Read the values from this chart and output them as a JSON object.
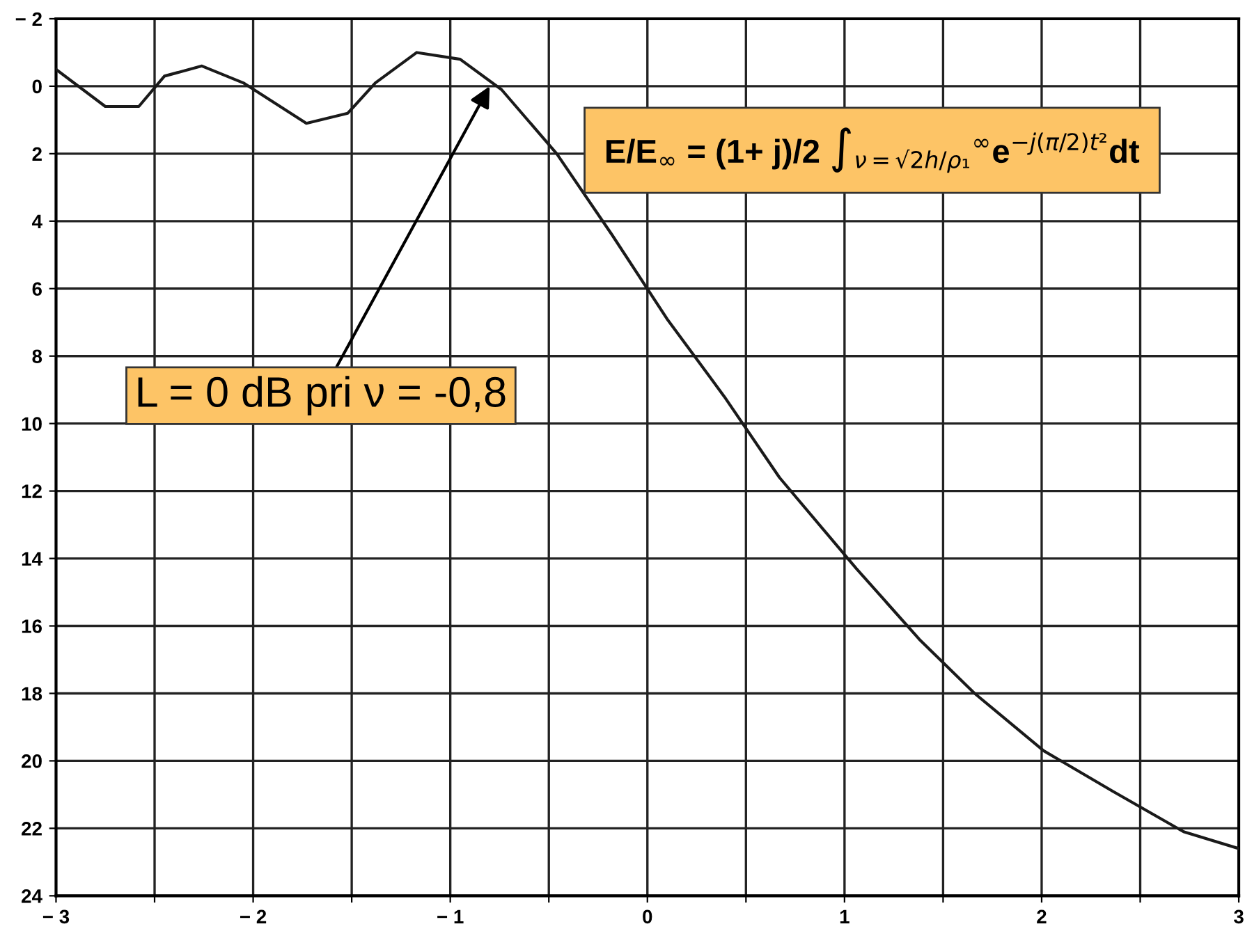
{
  "chart_data": {
    "type": "line",
    "x": [
      -3,
      -2.75,
      -2.58,
      -2.45,
      -2.26,
      -2.05,
      -1.73,
      -1.52,
      -1.38,
      -1.17,
      -0.95,
      -0.74,
      -0.46,
      -0.18,
      0.1,
      0.39,
      0.67,
      1.06,
      1.38,
      1.66,
      2.01,
      2.36,
      2.72,
      3
    ],
    "values": [
      -0.5,
      0.6,
      0.6,
      -0.3,
      -0.6,
      -0.1,
      1.1,
      0.8,
      -0.1,
      -1.0,
      -0.8,
      0.1,
      2.0,
      4.4,
      6.9,
      9.2,
      11.6,
      14.3,
      16.4,
      18.0,
      19.7,
      20.9,
      22.1,
      22.6
    ],
    "color": "#1a1a1a",
    "line_style": "solid",
    "marker": "none",
    "xlim": [
      -3,
      3
    ],
    "ylim": [
      24,
      -2
    ],
    "xticks": [
      {
        "value": -3,
        "label": "− 3"
      },
      {
        "value": -2.5,
        "label": null
      },
      {
        "value": -2,
        "label": "− 2"
      },
      {
        "value": -1.5,
        "label": null
      },
      {
        "value": -1,
        "label": "− 1"
      },
      {
        "value": -0.5,
        "label": null
      },
      0,
      {
        "value": 0.5,
        "label": null
      },
      1,
      {
        "value": 1.5,
        "label": null
      },
      2,
      {
        "value": 2.5,
        "label": null
      },
      3
    ],
    "yticks": [
      {
        "value": -2,
        "label": "− 2"
      },
      0,
      2,
      4,
      6,
      8,
      10,
      12,
      14,
      16,
      18,
      20,
      22,
      24
    ],
    "grid": true,
    "annotations": [
      {
        "text": "L = 0 dB pri ν = -0,8",
        "x": -0.8,
        "y": 0
      },
      "E/E$_{∞}$ = (1+ j)/2 ∫$_{ν=√2h/ρ₁}$$^{∞}$e$^{−j(π/2)t²}$dt"
    ]
  }
}
